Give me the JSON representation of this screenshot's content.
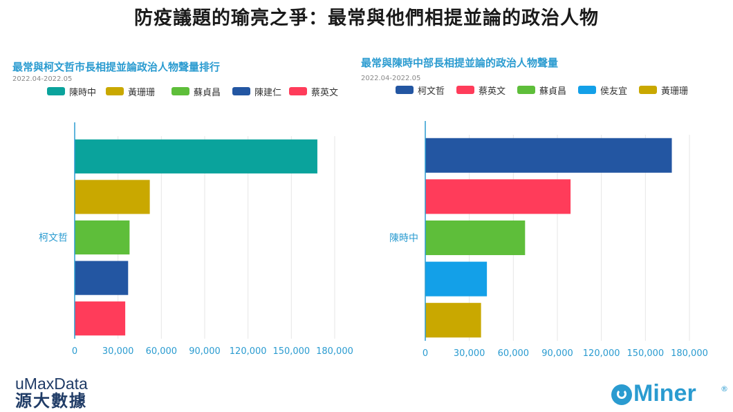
{
  "page": {
    "title": "防疫議題的瑜亮之爭：最常與他們相提並論的政治人物"
  },
  "branding": {
    "left_en": "uMaxData",
    "left_zh": "源大數據",
    "right_text": "Miner",
    "right_mark": "®"
  },
  "colors": {
    "teal": "#0aa39c",
    "gold": "#c9a800",
    "green": "#5ebe3a",
    "navy": "#2356a2",
    "red": "#ff3c5a",
    "sky": "#13a0e8",
    "axis": "#2a9bd0",
    "title_blue": "#2a9bd0"
  },
  "chart_data": [
    {
      "type": "bar",
      "orientation": "horizontal",
      "title": "最常與柯文哲市長相提並論政治人物聲量排行",
      "subtitle": "2022.04-2022.05",
      "category": "柯文哲",
      "series": [
        {
          "name": "陳時中",
          "value": 168000,
          "color": "#0aa39c"
        },
        {
          "name": "黃珊珊",
          "value": 52000,
          "color": "#c9a800"
        },
        {
          "name": "蘇貞昌",
          "value": 38000,
          "color": "#5ebe3a"
        },
        {
          "name": "陳建仁",
          "value": 37000,
          "color": "#2356a2"
        },
        {
          "name": "蔡英文",
          "value": 35000,
          "color": "#ff3c5a"
        }
      ],
      "xlim": [
        0,
        180000
      ],
      "xticks": [
        "0",
        "30,000",
        "60,000",
        "90,000",
        "120,000",
        "150,000",
        "180,000"
      ],
      "grid": true,
      "legend": "top"
    },
    {
      "type": "bar",
      "orientation": "horizontal",
      "title": "最常與陳時中部長相提並論的政治人物聲量",
      "subtitle": "2022.04-2022.05",
      "category": "陳時中",
      "series": [
        {
          "name": "柯文哲",
          "value": 168000,
          "color": "#2356a2"
        },
        {
          "name": "蔡英文",
          "value": 99000,
          "color": "#ff3c5a"
        },
        {
          "name": "蘇貞昌",
          "value": 68000,
          "color": "#5ebe3a"
        },
        {
          "name": "侯友宜",
          "value": 42000,
          "color": "#13a0e8"
        },
        {
          "name": "黃珊珊",
          "value": 38000,
          "color": "#c9a800"
        }
      ],
      "xlim": [
        0,
        180000
      ],
      "xticks": [
        "0",
        "30,000",
        "60,000",
        "90,000",
        "120,000",
        "150,000",
        "180,000"
      ],
      "grid": true,
      "legend": "top"
    }
  ]
}
